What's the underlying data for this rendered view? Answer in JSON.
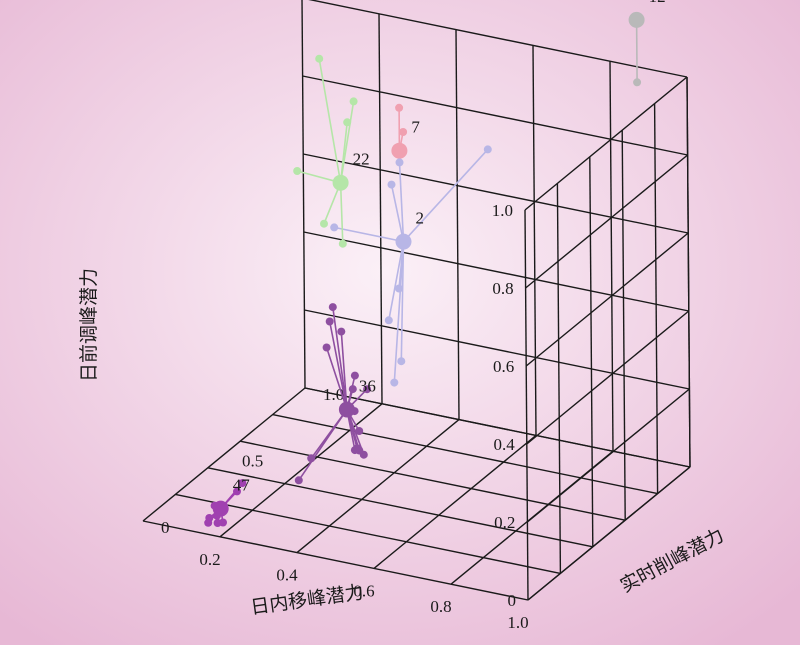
{
  "chart_data": {
    "type": "scatter",
    "title": "",
    "axes": {
      "x": {
        "label": "日内移峰潜力",
        "ticks": [
          "1.0",
          "0.8",
          "0.6",
          "0.4",
          "0.2"
        ]
      },
      "y": {
        "label": "实时削峰潜力",
        "ticks": [
          "0",
          "0.5",
          "1.0"
        ]
      },
      "z": {
        "label": "日前调峰潜力",
        "ticks": [
          "0",
          "0.2",
          "0.4",
          "0.6",
          "0.8",
          "1.0"
        ]
      }
    },
    "grid": true,
    "clusters": [
      {
        "label": "12",
        "color": "#b9b9b9",
        "center": {
          "x": 0.87,
          "y": 1.0,
          "z": 1.12
        },
        "members": [
          {
            "x": 0.87,
            "y": 1.0,
            "z": 0.96
          }
        ]
      },
      {
        "label": "7",
        "color": "#f0a0b0",
        "center": {
          "x": 0.42,
          "y": 0.6,
          "z": 0.83
        },
        "members": [
          {
            "x": 0.42,
            "y": 0.6,
            "z": 0.94
          },
          {
            "x": 0.43,
            "y": 0.6,
            "z": 0.88
          }
        ]
      },
      {
        "label": "2",
        "color": "#b8b6e6",
        "center": {
          "x": 0.45,
          "y": 0.55,
          "z": 0.62
        },
        "members": [
          {
            "x": 0.65,
            "y": 0.6,
            "z": 0.88
          },
          {
            "x": 0.27,
            "y": 0.55,
            "z": 0.62
          },
          {
            "x": 0.42,
            "y": 0.6,
            "z": 0.8
          },
          {
            "x": 0.42,
            "y": 0.55,
            "z": 0.76
          },
          {
            "x": 0.45,
            "y": 0.52,
            "z": 0.51
          },
          {
            "x": 0.44,
            "y": 0.48,
            "z": 0.44
          },
          {
            "x": 0.48,
            "y": 0.46,
            "z": 0.35
          },
          {
            "x": 0.47,
            "y": 0.44,
            "z": 0.3
          }
        ]
      },
      {
        "label": "22",
        "color": "#b5e6a8",
        "center": {
          "x": 0.19,
          "y": 0.78,
          "z": 0.64
        },
        "members": [
          {
            "x": 0.12,
            "y": 0.82,
            "z": 0.93
          },
          {
            "x": 0.2,
            "y": 0.84,
            "z": 0.83
          },
          {
            "x": 0.2,
            "y": 0.8,
            "z": 0.79
          },
          {
            "x": 0.09,
            "y": 0.75,
            "z": 0.66
          },
          {
            "x": 0.22,
            "y": 0.72,
            "z": 0.51
          },
          {
            "x": 0.18,
            "y": 0.7,
            "z": 0.56
          }
        ]
      },
      {
        "label": "36",
        "color": "#8e4fa0",
        "center": {
          "x": 0.38,
          "y": 0.36,
          "z": 0.24
        },
        "members": [
          {
            "x": 0.32,
            "y": 0.42,
            "z": 0.47
          },
          {
            "x": 0.32,
            "y": 0.4,
            "z": 0.44
          },
          {
            "x": 0.35,
            "y": 0.4,
            "z": 0.42
          },
          {
            "x": 0.32,
            "y": 0.38,
            "z": 0.38
          },
          {
            "x": 0.45,
            "y": 0.32,
            "z": 0.32
          },
          {
            "x": 0.41,
            "y": 0.34,
            "z": 0.34
          },
          {
            "x": 0.4,
            "y": 0.35,
            "z": 0.3
          },
          {
            "x": 0.4,
            "y": 0.36,
            "z": 0.24
          },
          {
            "x": 0.42,
            "y": 0.34,
            "z": 0.2
          },
          {
            "x": 0.44,
            "y": 0.32,
            "z": 0.15
          },
          {
            "x": 0.42,
            "y": 0.34,
            "z": 0.15
          },
          {
            "x": 0.41,
            "y": 0.35,
            "z": 0.15
          },
          {
            "x": 0.4,
            "y": 0.36,
            "z": 0.14
          },
          {
            "x": 0.32,
            "y": 0.28,
            "z": 0.13
          },
          {
            "x": 0.3,
            "y": 0.25,
            "z": 0.08
          }
        ]
      },
      {
        "label": "47",
        "color": "#a040b0",
        "center": {
          "x": 0.16,
          "y": 0.1,
          "z": 0.03
        },
        "members": [
          {
            "x": 0.2,
            "y": 0.14,
            "z": 0.09
          },
          {
            "x": 0.19,
            "y": 0.13,
            "z": 0.07
          },
          {
            "x": 0.16,
            "y": 0.12,
            "z": 0.03
          },
          {
            "x": 0.14,
            "y": 0.11,
            "z": 0.03
          },
          {
            "x": 0.15,
            "y": 0.1,
            "z": 0.01
          },
          {
            "x": 0.17,
            "y": 0.09,
            "z": 0.0
          },
          {
            "x": 0.13,
            "y": 0.1,
            "z": 0.0
          },
          {
            "x": 0.16,
            "y": 0.08,
            "z": 0.0
          },
          {
            "x": 0.14,
            "y": 0.07,
            "z": 0.0
          }
        ]
      }
    ]
  },
  "style": {
    "background_center": "#fbf0f7",
    "background_edge": "#e7b8d5",
    "grid_color": "#1a1a1a"
  }
}
